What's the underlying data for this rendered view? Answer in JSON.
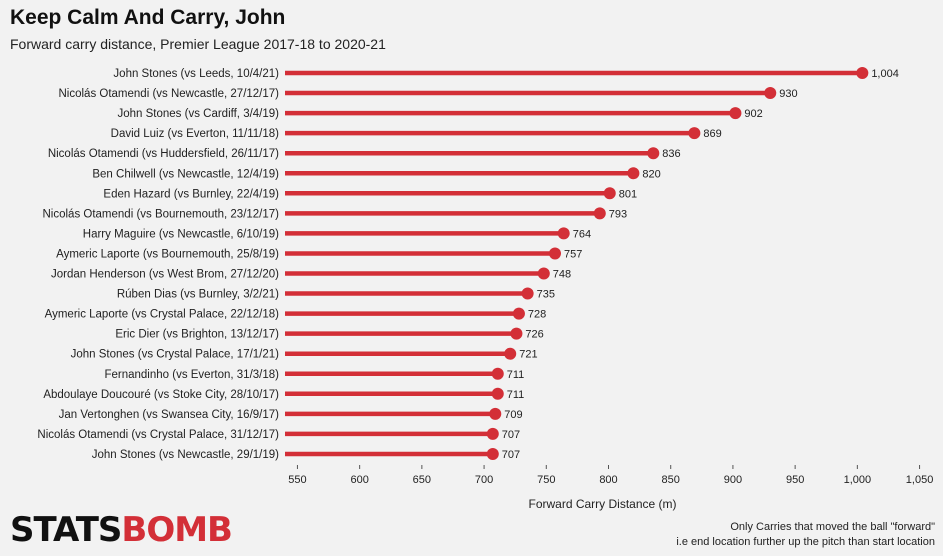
{
  "header": {
    "title": "Keep Calm And Carry, John",
    "subtitle": "Forward carry distance, Premier League 2017-18 to 2020-21"
  },
  "footer": {
    "logo_part1": "STATS",
    "logo_part2": "BOMB",
    "note_line1": "Only Carries that moved the ball \"forward\"",
    "note_line2": "i.e end location further up the pitch than start location"
  },
  "colors": {
    "accent": "#d32f37",
    "background": "#f2f2f2"
  },
  "chart_data": {
    "type": "bar",
    "orientation": "horizontal",
    "style": "lollipop",
    "title": "Keep Calm And Carry, John",
    "subtitle": "Forward carry distance, Premier League 2017-18 to 2020-21",
    "xlabel": "Forward Carry Distance (m)",
    "ylabel": "",
    "xlim": [
      540,
      1060
    ],
    "xticks": [
      550,
      600,
      650,
      700,
      750,
      800,
      850,
      900,
      950,
      1000,
      1050
    ],
    "xtick_labels": [
      "550",
      "600",
      "650",
      "700",
      "750",
      "800",
      "850",
      "900",
      "950",
      "1,000",
      "1,050"
    ],
    "grid": false,
    "categories": [
      "John Stones (vs Leeds, 10/4/21)",
      "Nicolás Otamendi (vs Newcastle, 27/12/17)",
      "John Stones (vs Cardiff, 3/4/19)",
      "David Luiz (vs Everton, 11/11/18)",
      "Nicolás Otamendi (vs Huddersfield, 26/11/17)",
      "Ben Chilwell (vs Newcastle, 12/4/19)",
      "Eden Hazard (vs Burnley, 22/4/19)",
      "Nicolás Otamendi (vs Bournemouth, 23/12/17)",
      "Harry Maguire (vs Newcastle, 6/10/19)",
      "Aymeric Laporte (vs Bournemouth, 25/8/19)",
      "Jordan Henderson (vs West Brom, 27/12/20)",
      "Rúben Dias (vs Burnley, 3/2/21)",
      "Aymeric Laporte (vs Crystal Palace, 22/12/18)",
      "Eric Dier (vs Brighton, 13/12/17)",
      "John Stones (vs Crystal Palace, 17/1/21)",
      "Fernandinho (vs Everton, 31/3/18)",
      "Abdoulaye Doucouré (vs Stoke City, 28/10/17)",
      "Jan Vertonghen (vs Swansea City, 16/9/17)",
      "Nicolás Otamendi (vs Crystal Palace, 31/12/17)",
      "John Stones (vs Newcastle, 29/1/19)"
    ],
    "values": [
      1004,
      930,
      902,
      869,
      836,
      820,
      801,
      793,
      764,
      757,
      748,
      735,
      728,
      726,
      721,
      711,
      711,
      709,
      707,
      707
    ],
    "value_labels": [
      "1,004",
      "930",
      "902",
      "869",
      "836",
      "820",
      "801",
      "793",
      "764",
      "757",
      "748",
      "735",
      "728",
      "726",
      "721",
      "711",
      "711",
      "709",
      "707",
      "707"
    ]
  }
}
